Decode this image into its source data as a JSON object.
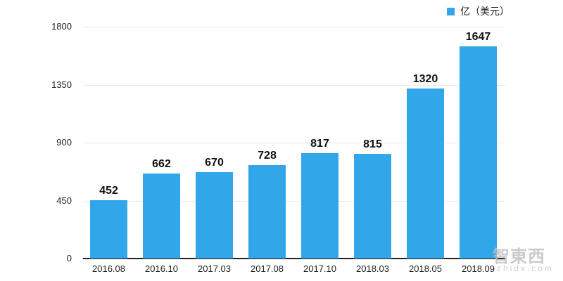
{
  "chart_data": {
    "type": "bar",
    "title": "",
    "xlabel": "",
    "ylabel": "",
    "categories": [
      "2016.08",
      "2016.10",
      "2017.03",
      "2017.08",
      "2017.10",
      "2018.03",
      "2018.05",
      "2018.09"
    ],
    "series": [
      {
        "name": "亿（美元）",
        "values": [
          452,
          662,
          670,
          728,
          817,
          815,
          1320,
          1647
        ],
        "color": "#31a6e8"
      }
    ],
    "ylim": [
      0,
      1800
    ],
    "yticks": [
      0,
      450,
      900,
      1350,
      1800
    ],
    "grid": true,
    "legend_position": "top-right",
    "data_labels": true
  },
  "legend": {
    "label": "亿（美元）"
  },
  "watermark": {
    "cn": "智東西",
    "url": "zhidx.com"
  }
}
